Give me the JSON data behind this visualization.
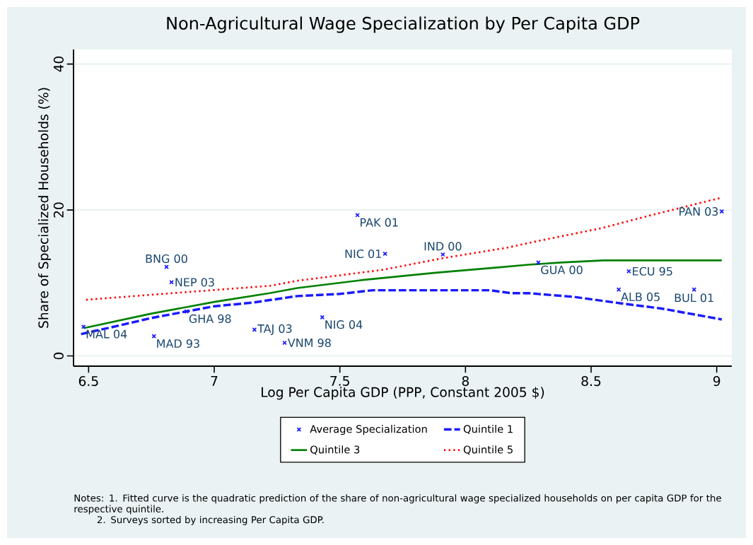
{
  "chart_data": {
    "type": "scatter",
    "title": "Non-Agricultural Wage Specialization by Per Capita GDP",
    "xlabel": "Log Per Capita GDP (PPP, Constant 2005 $)",
    "ylabel": "Share of Specialized Households (%)",
    "xlim": [
      6.44,
      9.06
    ],
    "ylim": [
      -1.4,
      42
    ],
    "xticks": [
      6.5,
      7,
      7.5,
      8,
      8.5,
      9
    ],
    "yticks": [
      0,
      20,
      40
    ],
    "grid": "y",
    "legend": "bottom",
    "series": [
      {
        "name": "Average Specialization",
        "color": "#1a1aff",
        "marker": "cross",
        "x": [
          6.48,
          6.76,
          6.81,
          6.83,
          6.89,
          7.16,
          7.28,
          7.57,
          7.68,
          7.91,
          7.43,
          8.29,
          8.65,
          8.61,
          8.91,
          9.02
        ],
        "values": [
          4.0,
          2.7,
          12.2,
          10.1,
          6.1,
          3.6,
          1.8,
          19.3,
          14.0,
          13.9,
          5.3,
          12.8,
          11.6,
          9.1,
          9.1,
          19.8
        ]
      },
      {
        "name": "Quintile 1",
        "type": "line",
        "color": "#1a1aff",
        "line_style": "dashed",
        "marker": "none",
        "x": [
          6.47,
          6.6,
          6.75,
          6.89,
          7.0,
          7.15,
          7.33,
          7.5,
          7.63,
          7.8,
          8.1,
          8.18,
          8.25,
          8.43,
          8.62,
          8.78,
          9.02
        ],
        "values": [
          3.0,
          4.0,
          5.2,
          6.1,
          6.8,
          7.3,
          8.2,
          8.5,
          9.0,
          9.0,
          9.0,
          8.6,
          8.6,
          8.1,
          7.2,
          6.5,
          5.0
        ]
      },
      {
        "name": "Quintile 3",
        "type": "line",
        "color": "#008000",
        "line_style": "solid",
        "marker": "none",
        "x": [
          6.48,
          6.75,
          7.0,
          7.22,
          7.33,
          7.59,
          7.88,
          8.12,
          8.25,
          8.38,
          8.55,
          9.02
        ],
        "values": [
          3.8,
          5.8,
          7.4,
          8.6,
          9.3,
          10.4,
          11.4,
          12.1,
          12.5,
          12.8,
          13.1,
          13.1
        ]
      },
      {
        "name": "Quintile 5",
        "type": "line",
        "color": "#ff0000",
        "line_style": "dotted",
        "marker": "none",
        "x": [
          6.49,
          6.87,
          7.22,
          7.33,
          7.67,
          7.91,
          8.16,
          8.31,
          8.54,
          8.74,
          9.02
        ],
        "values": [
          7.7,
          8.7,
          9.6,
          10.3,
          11.8,
          13.4,
          14.8,
          15.9,
          17.5,
          19.3,
          21.7
        ]
      }
    ],
    "annotations": [
      {
        "text": "MAL 04",
        "x": 6.48,
        "y": 4.0
      },
      {
        "text": "MAD 93",
        "x": 6.76,
        "y": 2.7
      },
      {
        "text": "BNG 00",
        "x": 6.81,
        "y": 12.2
      },
      {
        "text": "NEP 03",
        "x": 6.83,
        "y": 10.1
      },
      {
        "text": "GHA 98",
        "x": 6.89,
        "y": 6.1
      },
      {
        "text": "TAJ 03",
        "x": 7.16,
        "y": 3.6
      },
      {
        "text": "VNM 98",
        "x": 7.28,
        "y": 1.8
      },
      {
        "text": "PAK 01",
        "x": 7.57,
        "y": 19.3
      },
      {
        "text": "NIC 01",
        "x": 7.68,
        "y": 14.0
      },
      {
        "text": "IND 00",
        "x": 7.91,
        "y": 13.9
      },
      {
        "text": "NIG 04",
        "x": 7.43,
        "y": 5.3
      },
      {
        "text": "GUA 00",
        "x": 8.29,
        "y": 12.8
      },
      {
        "text": "ECU 95",
        "x": 8.65,
        "y": 11.6
      },
      {
        "text": "ALB 05",
        "x": 8.61,
        "y": 9.1
      },
      {
        "text": "BUL 01",
        "x": 8.91,
        "y": 9.1
      },
      {
        "text": "PAN 03",
        "x": 9.02,
        "y": 19.8
      },
      "Notes: 1. Fitted curve is the quadratic prediction of the share of non-agricultural wage specialized households on per capita GDP for the respective quintile.",
      "2. Surveys sorted by increasing Per Capita GDP."
    ]
  }
}
